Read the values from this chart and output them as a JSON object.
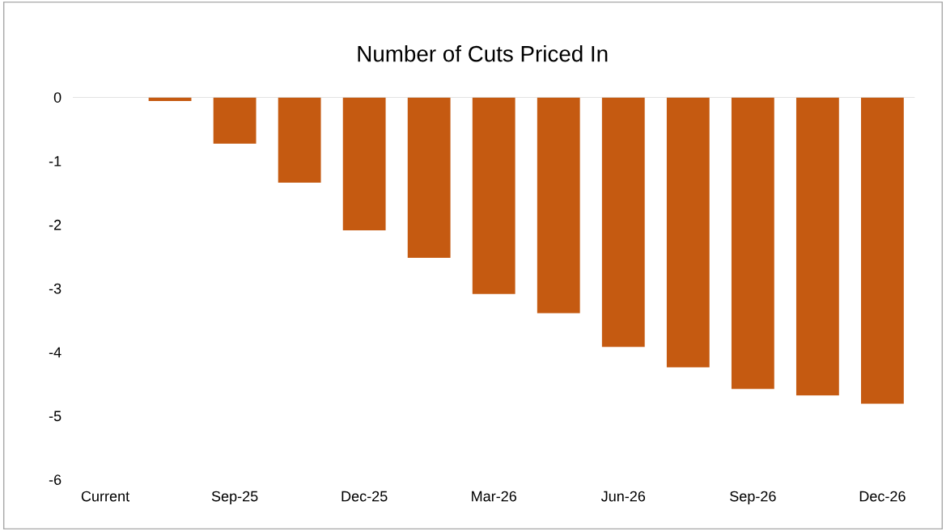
{
  "chart_data": {
    "type": "bar",
    "title": "Number of Cuts Priced In",
    "categories": [
      "Current",
      null,
      "Sep-25",
      null,
      "Dec-25",
      null,
      "Mar-26",
      null,
      "Jun-26",
      null,
      "Sep-26",
      null,
      "Dec-26"
    ],
    "values": [
      0,
      -0.06,
      -0.73,
      -1.34,
      -2.09,
      -2.52,
      -3.09,
      -3.39,
      -3.92,
      -4.24,
      -4.58,
      -4.68,
      -4.81
    ],
    "color": "#c55a11",
    "ylim": [
      -6,
      0
    ],
    "yticks": [
      -6,
      -5,
      -4,
      -3,
      -2,
      -1,
      0
    ],
    "grid": false,
    "legend": false
  }
}
